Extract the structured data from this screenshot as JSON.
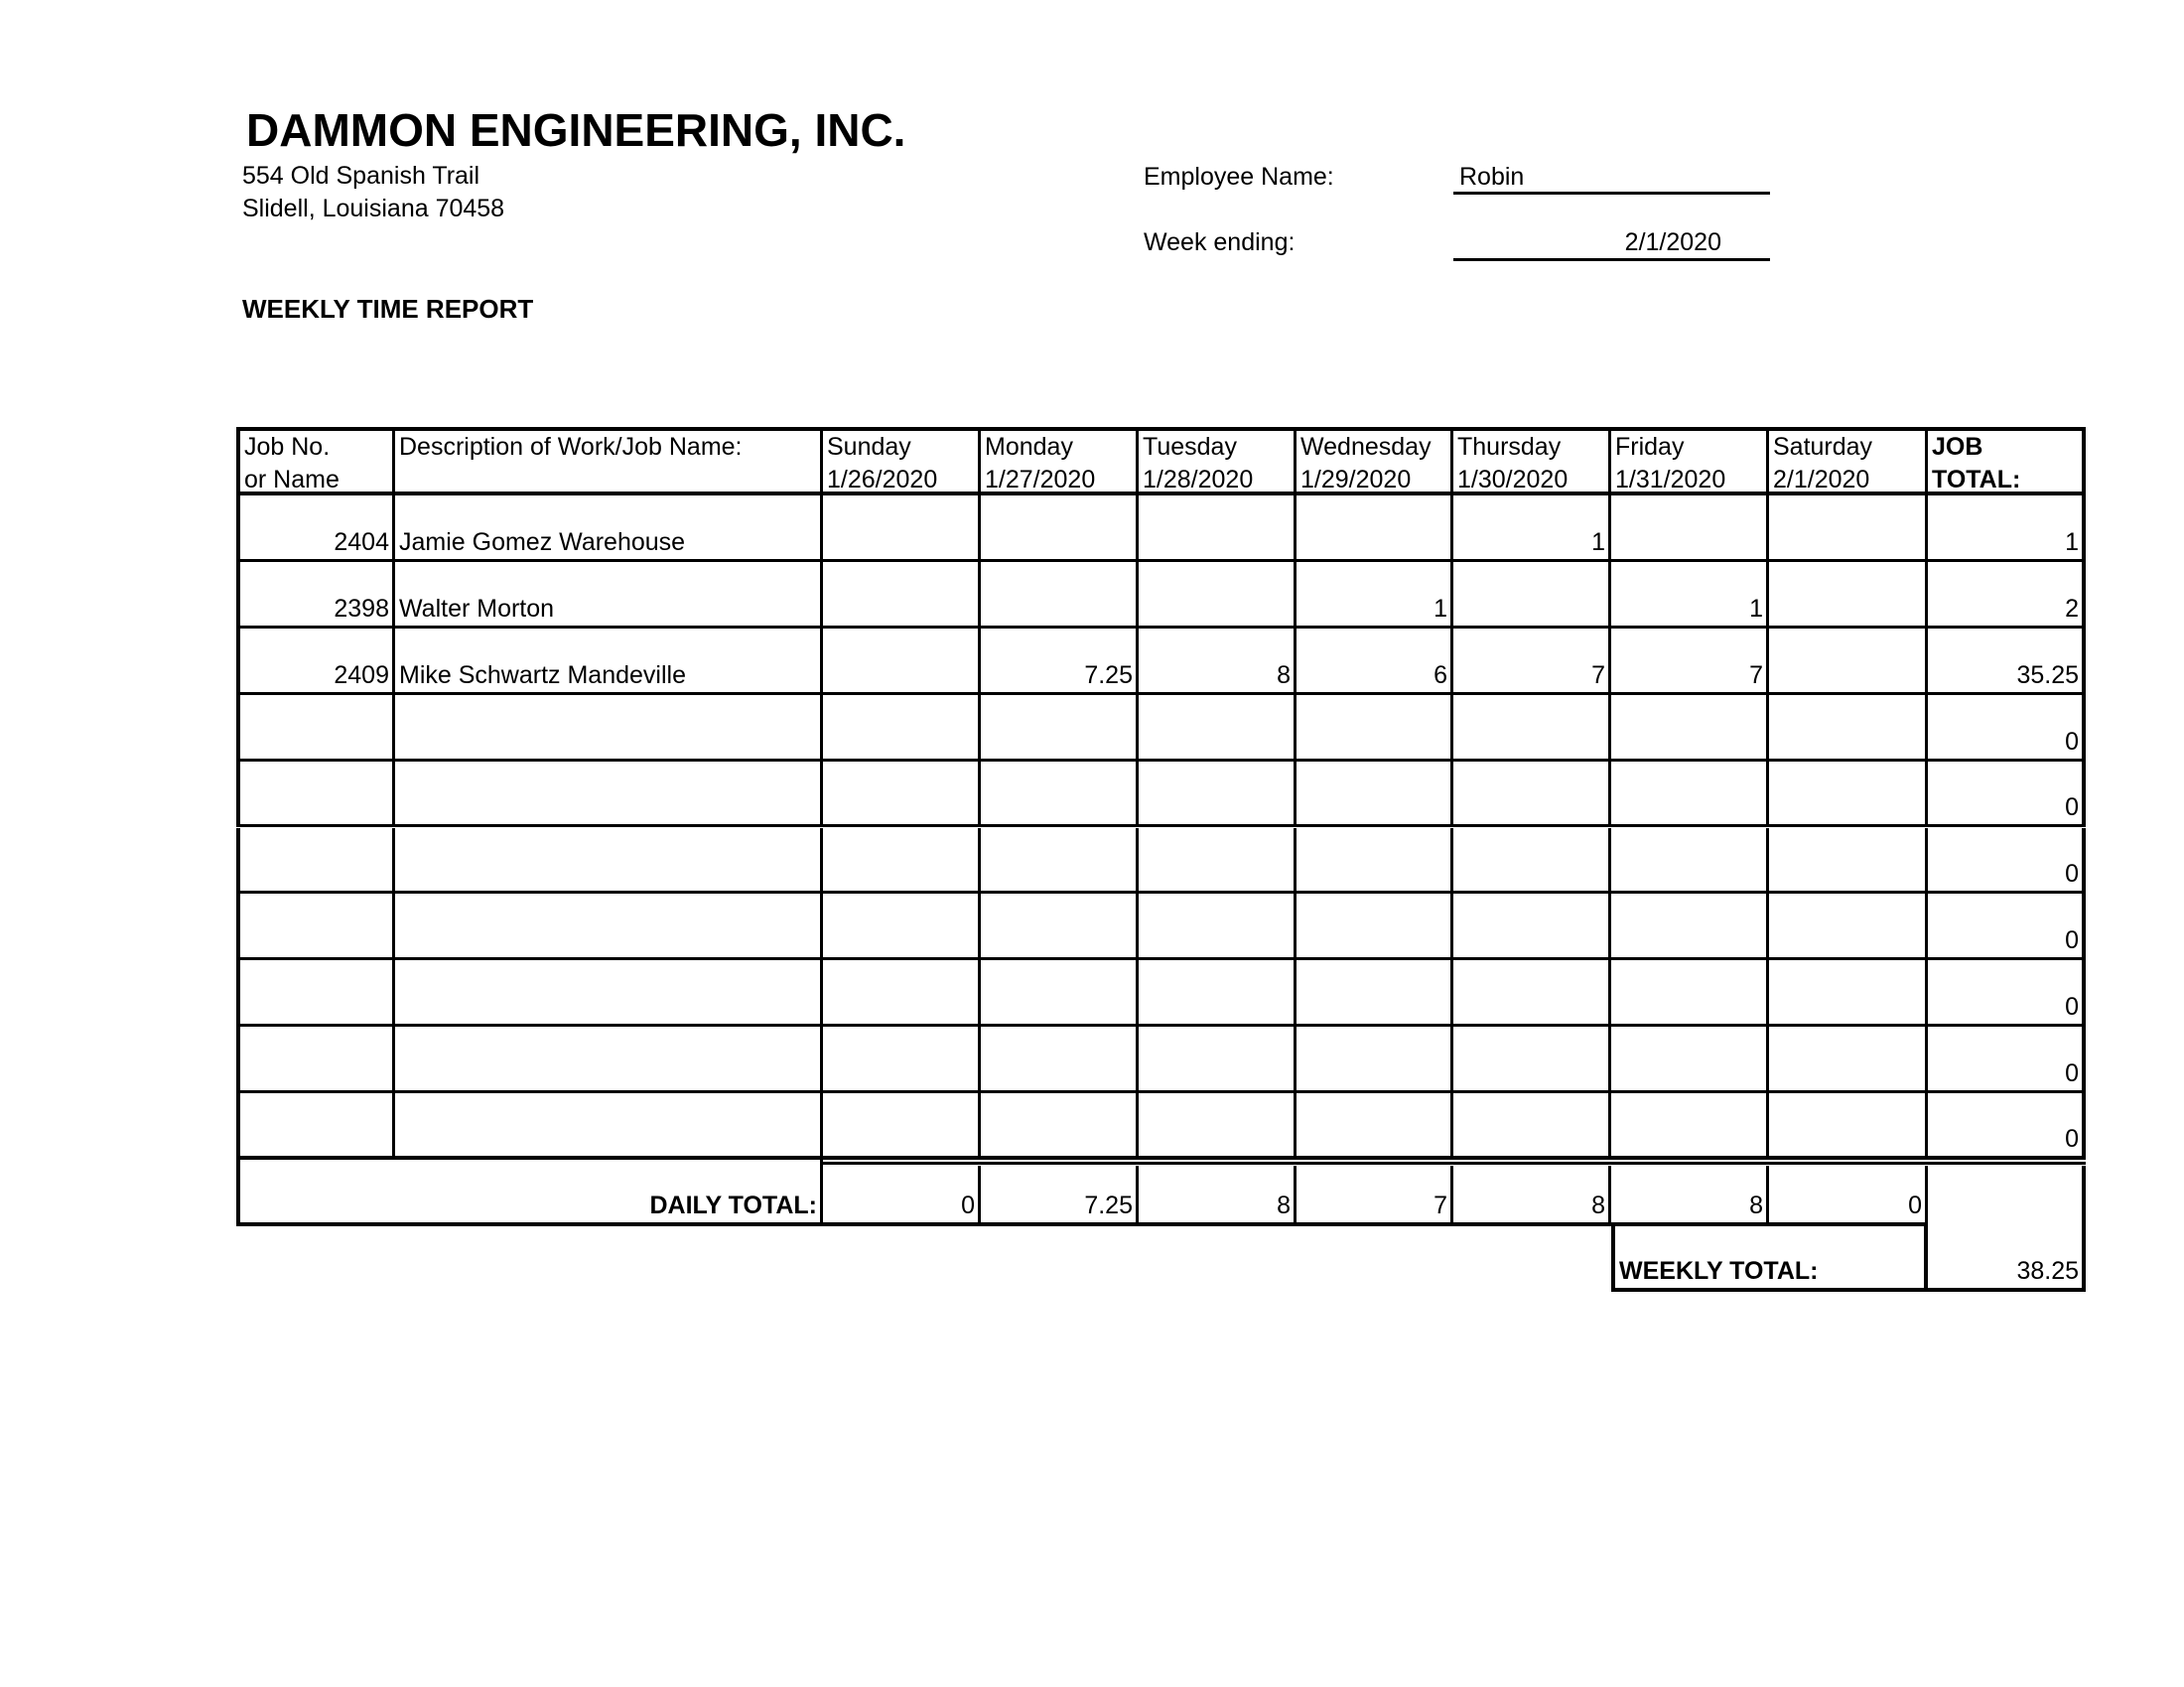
{
  "company": {
    "name": "DAMMON ENGINEERING, INC.",
    "address_line1": "554 Old Spanish Trail",
    "address_line2": "Slidell, Louisiana  70458"
  },
  "employee": {
    "name_label": "Employee Name:",
    "name_value": "Robin",
    "week_label": "Week ending:",
    "week_value": "2/1/2020"
  },
  "report_title": "WEEKLY TIME REPORT",
  "table": {
    "headers": [
      [
        "Job No.",
        "or Name"
      ],
      [
        "Description of Work/Job Name:",
        ""
      ],
      [
        "Sunday",
        "1/26/2020"
      ],
      [
        "Monday",
        "1/27/2020"
      ],
      [
        "Tuesday",
        "1/28/2020"
      ],
      [
        "Wednesday",
        "1/29/2020"
      ],
      [
        "Thursday",
        "1/30/2020"
      ],
      [
        "Friday",
        "1/31/2020"
      ],
      [
        "Saturday",
        "2/1/2020"
      ],
      [
        "JOB",
        "TOTAL:"
      ]
    ],
    "rows": [
      [
        "2404",
        "Jamie Gomez Warehouse",
        "",
        "",
        "",
        "",
        "1",
        "",
        "",
        "1"
      ],
      [
        "2398",
        "Walter Morton",
        "",
        "",
        "",
        "1",
        "",
        "1",
        "",
        "2"
      ],
      [
        "2409",
        "Mike Schwartz Mandeville",
        "",
        "7.25",
        "8",
        "6",
        "7",
        "7",
        "",
        "35.25"
      ],
      [
        "",
        "",
        "",
        "",
        "",
        "",
        "",
        "",
        "",
        "0"
      ],
      [
        "",
        "",
        "",
        "",
        "",
        "",
        "",
        "",
        "",
        "0"
      ],
      [
        "",
        "",
        "",
        "",
        "",
        "",
        "",
        "",
        "",
        "0"
      ],
      [
        "",
        "",
        "",
        "",
        "",
        "",
        "",
        "",
        "",
        "0"
      ],
      [
        "",
        "",
        "",
        "",
        "",
        "",
        "",
        "",
        "",
        "0"
      ],
      [
        "",
        "",
        "",
        "",
        "",
        "",
        "",
        "",
        "",
        "0"
      ],
      [
        "",
        "",
        "",
        "",
        "",
        "",
        "",
        "",
        "",
        "0"
      ]
    ],
    "daily_total_label": "DAILY TOTAL:",
    "daily_totals": [
      "0",
      "7.25",
      "8",
      "7",
      "8",
      "8",
      "0"
    ],
    "weekly_total_label": "WEEKLY TOTAL:",
    "weekly_total": "38.25"
  }
}
